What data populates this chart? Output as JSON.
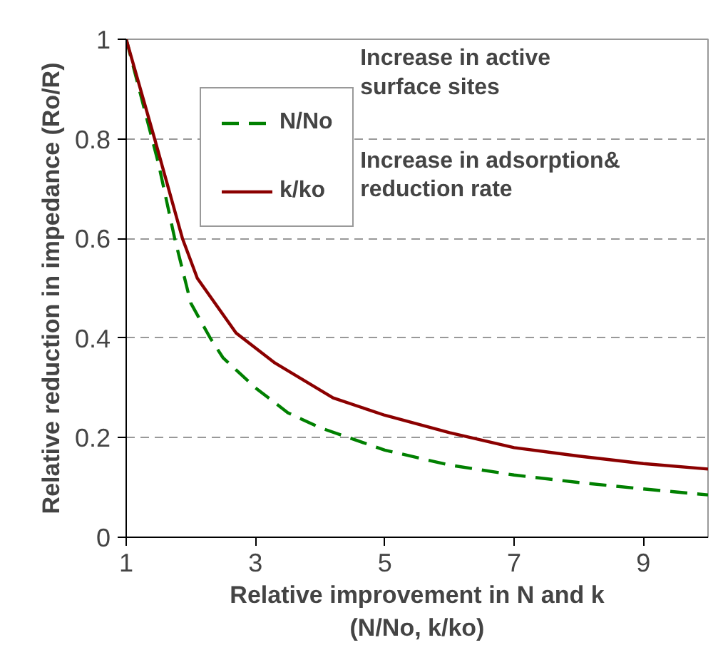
{
  "chart_data": {
    "type": "line",
    "xlabel": "Relative improvement in N and k\n(N/No, k/ko)",
    "ylabel": "Relative reduction in impedance (Ro/R)",
    "xlim": [
      1,
      10
    ],
    "xticks": [
      1,
      3,
      5,
      7,
      9
    ],
    "ylim": [
      0,
      1
    ],
    "yticks": [
      0,
      0.2,
      0.4,
      0.6,
      0.8,
      1
    ],
    "grid": "y",
    "legend": "top",
    "annotations": [
      "Increase in active\nsurface sites",
      "Increase in adsorption&\nreduction rate"
    ],
    "series": [
      {
        "name": "N/No",
        "color": "#008000",
        "line_style": "dashed",
        "x": [
          1,
          1.3,
          1.5,
          1.75,
          2,
          2.3,
          2.5,
          3,
          3.5,
          4,
          5,
          6,
          7,
          8,
          9,
          10
        ],
        "values": [
          1,
          0.85,
          0.75,
          0.6,
          0.47,
          0.4,
          0.36,
          0.3,
          0.25,
          0.22,
          0.175,
          0.145,
          0.125,
          0.11,
          0.097,
          0.085
        ]
      },
      {
        "name": "k/ko",
        "color": "#8b0000",
        "line_style": "solid",
        "x": [
          1,
          1.44,
          1.87,
          2.1,
          2.7,
          3.3,
          4.2,
          5,
          6,
          7,
          8,
          9,
          10
        ],
        "values": [
          1,
          0.8,
          0.6,
          0.52,
          0.41,
          0.35,
          0.28,
          0.245,
          0.21,
          0.18,
          0.163,
          0.148,
          0.137
        ]
      }
    ]
  }
}
